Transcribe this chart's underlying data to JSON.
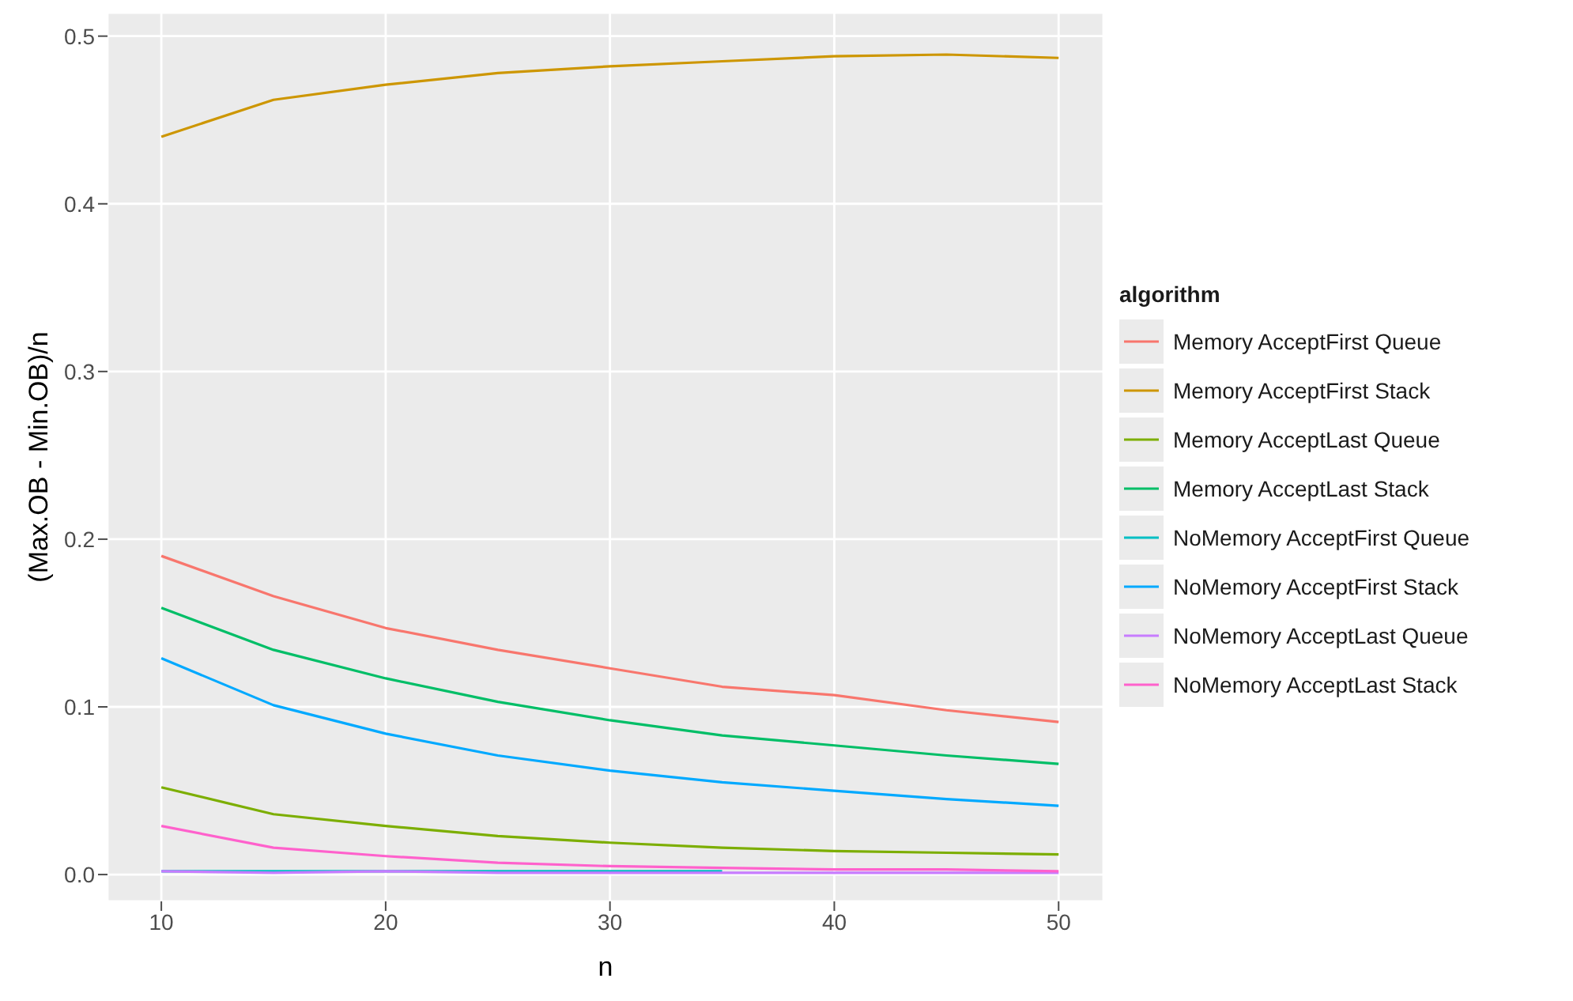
{
  "chart_data": {
    "type": "line",
    "xlabel": "n",
    "ylabel": "(Max.OB - Min.OB)/n",
    "legend_title": "algorithm",
    "legend": "right",
    "grid": true,
    "x": [
      10,
      15,
      20,
      25,
      30,
      35,
      40,
      45,
      50
    ],
    "xlim": [
      7.6,
      52
    ],
    "xticks": [
      10,
      20,
      30,
      40,
      50
    ],
    "ylim": [
      -0.016,
      0.514
    ],
    "yticks": [
      {
        "value": 0,
        "label": "0.0"
      },
      {
        "value": 0.1,
        "label": "0.1"
      },
      {
        "value": 0.2,
        "label": "0.2"
      },
      {
        "value": 0.3,
        "label": "0.3"
      },
      {
        "value": 0.4,
        "label": "0.4"
      },
      {
        "value": 0.5,
        "label": "0.5"
      }
    ],
    "series": [
      {
        "name": "Memory AcceptFirst Queue",
        "color": "#f8766d",
        "values": [
          0.19,
          0.166,
          0.147,
          0.134,
          0.123,
          0.112,
          0.107,
          0.098,
          0.091
        ]
      },
      {
        "name": "Memory AcceptFirst Stack",
        "color": "#cd9600",
        "values": [
          0.44,
          0.462,
          0.471,
          0.478,
          0.482,
          0.485,
          0.488,
          0.489,
          0.487
        ]
      },
      {
        "name": "Memory AcceptLast Queue",
        "color": "#7cae00",
        "values": [
          0.052,
          0.036,
          0.029,
          0.023,
          0.019,
          0.016,
          0.014,
          0.013,
          0.012
        ]
      },
      {
        "name": "Memory AcceptLast Stack",
        "color": "#00be67",
        "values": [
          0.159,
          0.134,
          0.117,
          0.103,
          0.092,
          0.083,
          0.077,
          0.071,
          0.066
        ]
      },
      {
        "name": "NoMemory AcceptFirst Queue",
        "color": "#00bfc4",
        "values": [
          0.002,
          0.002,
          0.002,
          0.002,
          0.002,
          0.002,
          null,
          null,
          null
        ]
      },
      {
        "name": "NoMemory AcceptFirst Stack",
        "color": "#00a9ff",
        "values": [
          0.129,
          0.101,
          0.084,
          0.071,
          0.062,
          0.055,
          0.05,
          0.045,
          0.041
        ]
      },
      {
        "name": "NoMemory AcceptLast Queue",
        "color": "#c77cff",
        "values": [
          0.002,
          0.001,
          0.002,
          0.001,
          0.001,
          0.001,
          0.001,
          0.001,
          0.001
        ]
      },
      {
        "name": "NoMemory AcceptLast Stack",
        "color": "#ff61cc",
        "values": [
          0.029,
          0.016,
          0.011,
          0.007,
          0.005,
          0.004,
          0.003,
          0.003,
          0.002
        ]
      }
    ]
  }
}
